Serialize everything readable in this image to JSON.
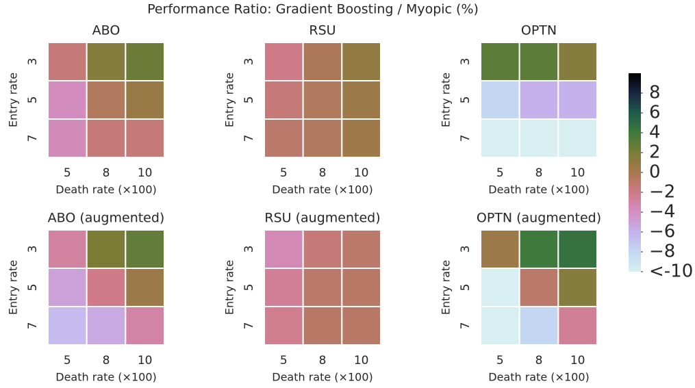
{
  "title": "Performance Ratio: Gradient Boosting / Myopic (%)",
  "colorbar": {
    "lim": [
      -10,
      10
    ],
    "colormap": [
      "#d7eff0",
      "#c3d7f2",
      "#c5b2ec",
      "#d38ec4",
      "#cf7a86",
      "#a7784f",
      "#7b7d37",
      "#3d7a3b",
      "#1f5b4c",
      "#1a2541",
      "#000000"
    ],
    "ticks": [
      8,
      6,
      4,
      2,
      0,
      {
        "value": -2,
        "label": "−2"
      },
      {
        "value": -4,
        "label": "−4"
      },
      {
        "value": -6,
        "label": "−6"
      },
      {
        "value": -8,
        "label": "−8"
      },
      {
        "value": -10,
        "label": "<-10"
      }
    ]
  },
  "chart_data": [
    {
      "type": "heatmap",
      "title": "ABO",
      "xlabel": "Death rate (×100)",
      "ylabel": "Entry rate",
      "x_categories": [
        5,
        8,
        10
      ],
      "y_categories": [
        3,
        5,
        7
      ],
      "values": [
        [
          -1.5,
          1.5,
          2.5
        ],
        [
          -3.8,
          -0.5,
          0.7
        ],
        [
          -3.6,
          -1.5,
          -1.5
        ]
      ]
    },
    {
      "type": "heatmap",
      "title": "RSU",
      "xlabel": "Death rate (×100)",
      "ylabel": "Entry rate",
      "x_categories": [
        5,
        8,
        10
      ],
      "y_categories": [
        3,
        5,
        7
      ],
      "values": [
        [
          -2,
          -0.3,
          1
        ],
        [
          -1.5,
          -0.5,
          0.5
        ],
        [
          -1,
          -0.5,
          0.3
        ]
      ]
    },
    {
      "type": "heatmap",
      "title": "OPTN",
      "xlabel": "Death rate (×100)",
      "ylabel": "Entry rate",
      "x_categories": [
        5,
        8,
        10
      ],
      "y_categories": [
        3,
        5,
        7
      ],
      "values": [
        [
          3,
          3,
          1.5
        ],
        [
          -8,
          -6,
          -6
        ],
        [
          -10,
          -10,
          -10
        ]
      ]
    },
    {
      "type": "heatmap",
      "title": "ABO (augmented)",
      "xlabel": "Death rate (×100)",
      "ylabel": "Entry rate",
      "x_categories": [
        5,
        8,
        10
      ],
      "y_categories": [
        3,
        5,
        7
      ],
      "values": [
        [
          -2.8,
          2,
          2.8
        ],
        [
          -5,
          -2,
          0.5
        ],
        [
          -6.5,
          -5.5,
          -3
        ]
      ]
    },
    {
      "type": "heatmap",
      "title": "RSU (augmented)",
      "xlabel": "Death rate (×100)",
      "ylabel": "Entry rate",
      "x_categories": [
        5,
        8,
        10
      ],
      "y_categories": [
        3,
        5,
        7
      ],
      "values": [
        [
          -3.5,
          -1.5,
          -1
        ],
        [
          -2.5,
          -1,
          -0.8
        ],
        [
          -2.3,
          -0.8,
          -0.8
        ]
      ]
    },
    {
      "type": "heatmap",
      "title": "OPTN (augmented)",
      "xlabel": "Death rate (×100)",
      "ylabel": "Entry rate",
      "x_categories": [
        5,
        8,
        10
      ],
      "y_categories": [
        3,
        5,
        7
      ],
      "values": [
        [
          0.5,
          4,
          4.5
        ],
        [
          -10,
          -1,
          1.5
        ],
        [
          -10,
          -8,
          -2.5
        ]
      ]
    }
  ]
}
